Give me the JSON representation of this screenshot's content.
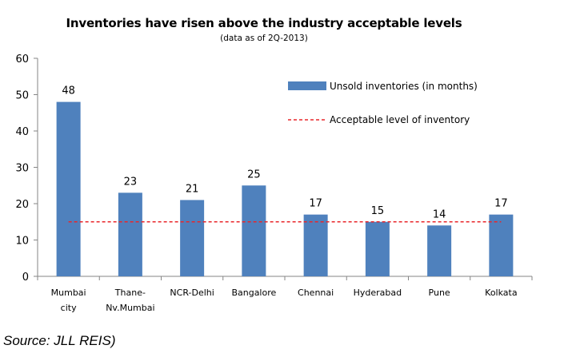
{
  "chart_data": {
    "type": "bar",
    "title": "Inventories have risen above the industry acceptable levels",
    "subtitle": "(data as of 2Q-2013)",
    "categories": [
      [
        "Mumbai",
        "city"
      ],
      [
        "Thane-",
        "Nv.Mumbai"
      ],
      [
        "NCR-Delhi"
      ],
      [
        "Bangalore"
      ],
      [
        "Chennai"
      ],
      [
        "Hyderabad"
      ],
      [
        "Pune"
      ],
      [
        "Kolkata"
      ]
    ],
    "series": [
      {
        "name": "Unsold inventories (in months)",
        "values": [
          48,
          23,
          21,
          25,
          17,
          15,
          14,
          17
        ],
        "color": "#4f81bd"
      }
    ],
    "reference_line": {
      "name": "Acceptable level of inventory",
      "value": 15,
      "color": "#e8262a",
      "style": "dashed"
    },
    "ylim": [
      0,
      60
    ],
    "yticks": [
      0,
      10,
      20,
      30,
      40,
      50,
      60
    ],
    "data_labels": true,
    "grid": false,
    "legend_position": "top-right"
  },
  "source": "Source: JLL REIS)"
}
